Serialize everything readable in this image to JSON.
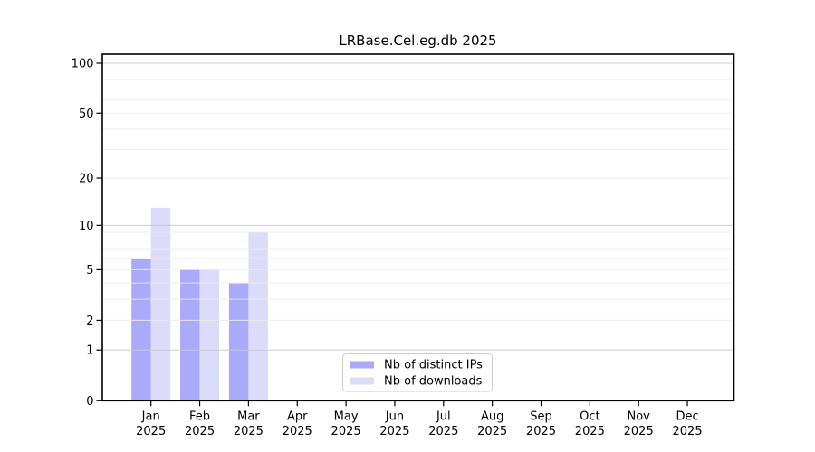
{
  "chart_data": {
    "type": "bar",
    "title": "LRBase.Cel.eg.db 2025",
    "categories": [
      "Jan",
      "Feb",
      "Mar",
      "Apr",
      "May",
      "Jun",
      "Jul",
      "Aug",
      "Sep",
      "Oct",
      "Nov",
      "Dec"
    ],
    "year": "2025",
    "series": [
      {
        "name": "Nb of distinct IPs",
        "color": "#aaaafa",
        "values": [
          6,
          5,
          4,
          0,
          0,
          0,
          0,
          0,
          0,
          0,
          0,
          0
        ]
      },
      {
        "name": "Nb of downloads",
        "color": "#dbdbfa",
        "values": [
          13,
          5,
          9,
          0,
          0,
          0,
          0,
          0,
          0,
          0,
          0,
          0
        ]
      }
    ],
    "y_axis": {
      "scale": "log1p",
      "ticks": [
        0,
        1,
        2,
        5,
        10,
        20,
        50,
        100
      ],
      "ylim": [
        0,
        113
      ],
      "grid_major": [
        1,
        10,
        100
      ],
      "grid_minor": [
        2,
        3,
        4,
        5,
        6,
        7,
        8,
        9,
        20,
        30,
        40,
        50,
        60,
        70,
        80,
        90
      ]
    },
    "legend": {
      "position": "bottom-center"
    },
    "colors": {
      "frame": "#000000",
      "grid_major": "#c9c9c9",
      "grid_minor": "#ebebeb",
      "legend_border": "#cccccc",
      "background": "#ffffff"
    }
  }
}
